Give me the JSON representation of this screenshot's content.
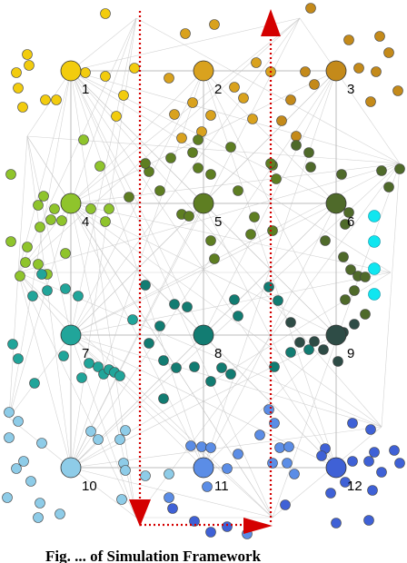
{
  "nodes": [
    {
      "label": "1",
      "color": "#f2cc0e"
    },
    {
      "label": "2",
      "color": "#d9a21e"
    },
    {
      "label": "3",
      "color": "#c48a1a"
    },
    {
      "label": "4",
      "color": "#8fc42c"
    },
    {
      "label": "5",
      "color": "#5e7e22"
    },
    {
      "label": "6",
      "color": "#4f6a2a"
    },
    {
      "label": "7",
      "color": "#21a59a"
    },
    {
      "label": "8",
      "color": "#127c72"
    },
    {
      "label": "9",
      "color": "#2e4c46"
    },
    {
      "label": "10",
      "color": "#8ecce8"
    },
    {
      "label": "11",
      "color": "#5b8de6"
    },
    {
      "label": "12",
      "color": "#3f61d6"
    }
  ],
  "caption": "Fig. ... of Simulation Framework",
  "colors": {
    "path": "#d40000",
    "grid": "#c8c8c8",
    "cyan": "#10e6f0"
  }
}
